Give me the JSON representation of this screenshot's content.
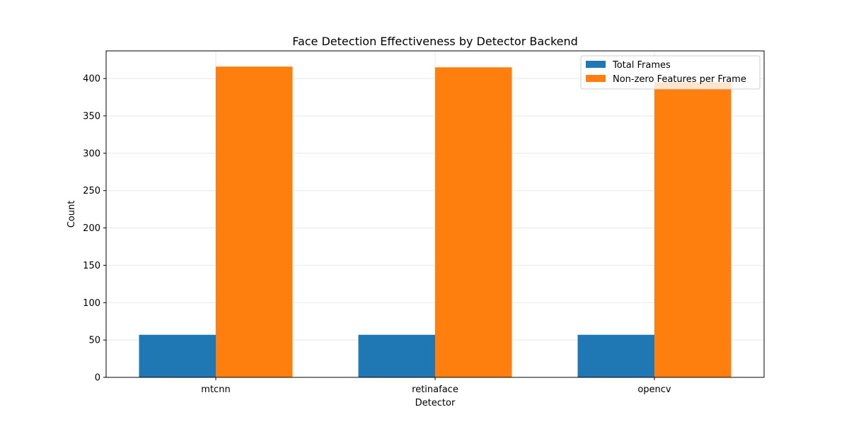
{
  "chart_data": {
    "type": "bar",
    "title": "Face Detection Effectiveness by Detector Backend",
    "xlabel": "Detector",
    "ylabel": "Count",
    "categories": [
      "mtcnn",
      "retinaface",
      "opencv"
    ],
    "series": [
      {
        "name": "Total Frames",
        "values": [
          57,
          57,
          57
        ],
        "color": "#1f77b4"
      },
      {
        "name": "Non-zero Features per Frame",
        "values": [
          416,
          415,
          395
        ],
        "color": "#ff7f0e"
      }
    ],
    "ylim": [
      0,
      437
    ],
    "yticks": [
      "0",
      "50",
      "100",
      "150",
      "200",
      "250",
      "300",
      "350",
      "400"
    ],
    "grid": true,
    "legend_position": "top-right"
  }
}
